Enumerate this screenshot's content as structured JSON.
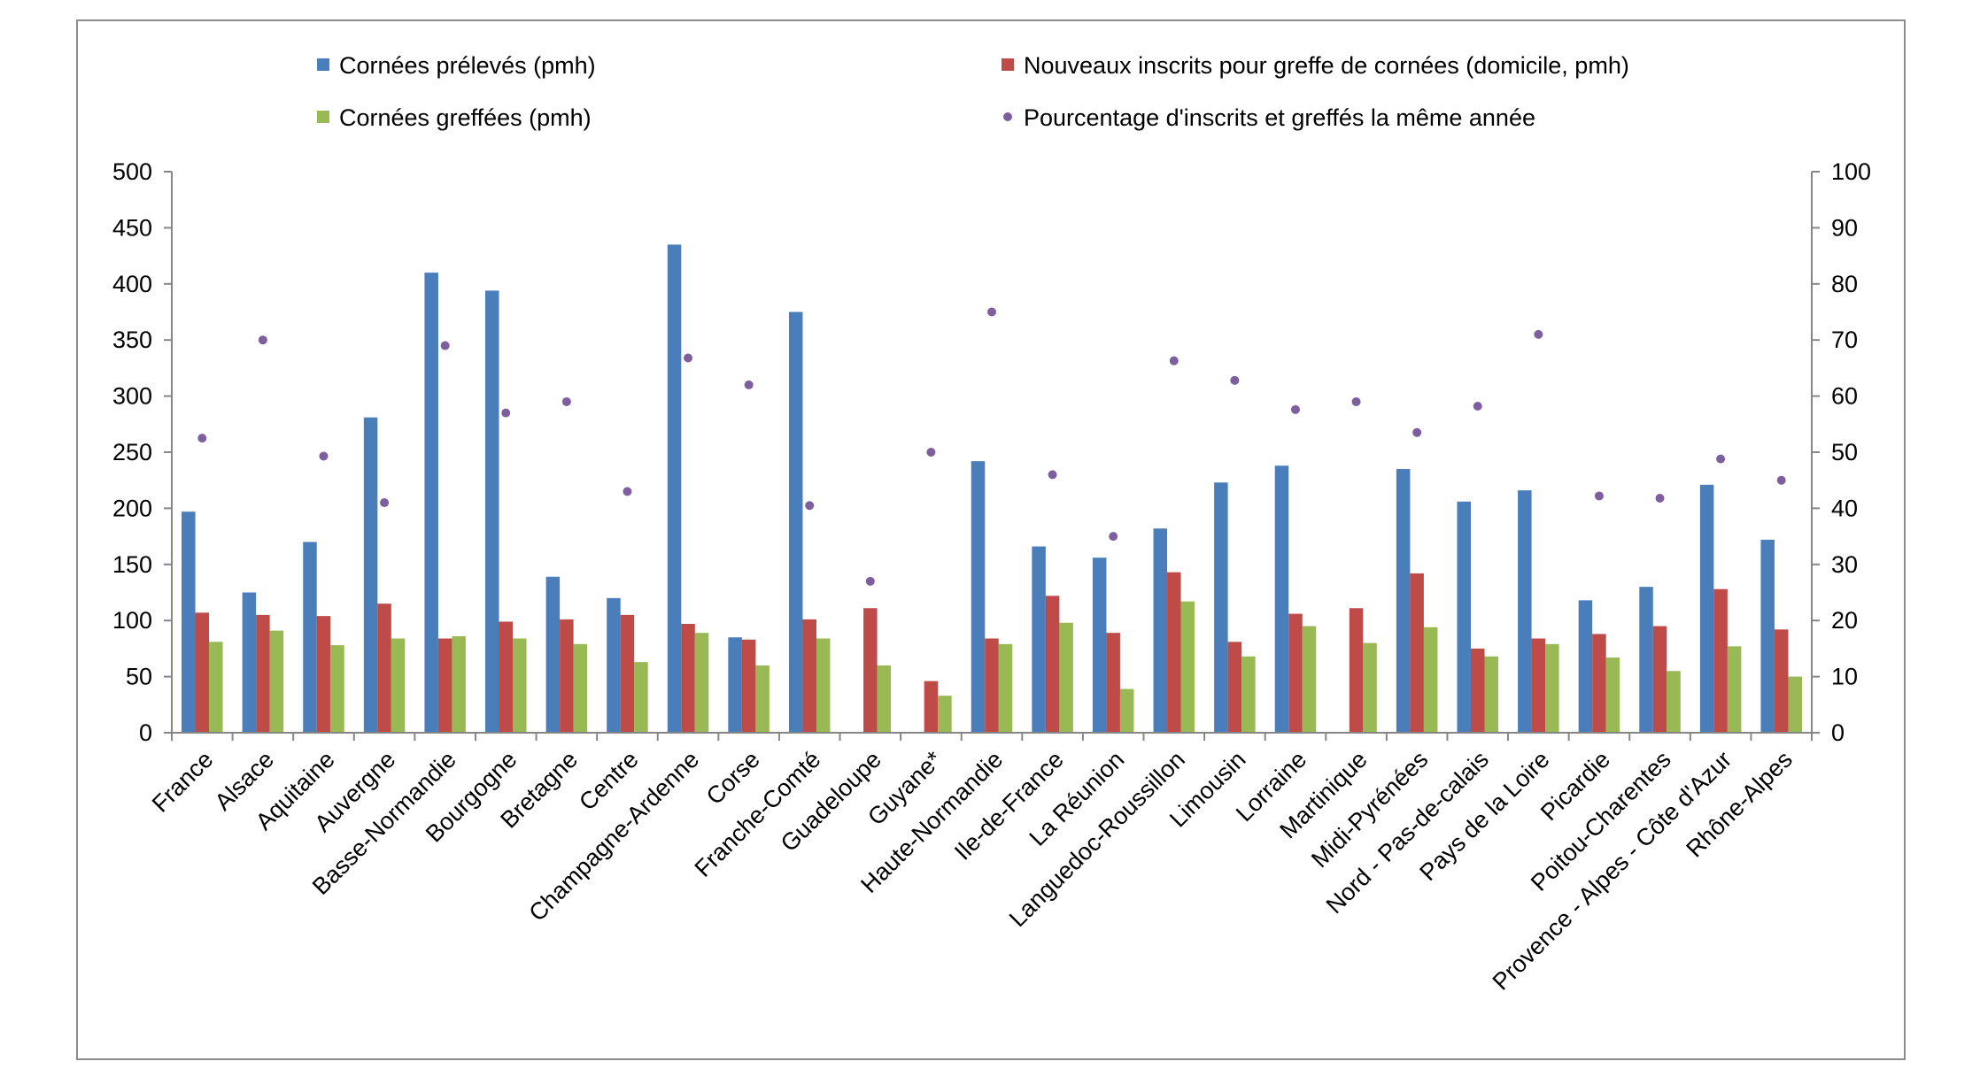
{
  "chart_data": {
    "type": "bar",
    "categories": [
      "France",
      "Alsace",
      "Aquitaine",
      "Auvergne",
      "Basse-Normandie",
      "Bourgogne",
      "Bretagne",
      "Centre",
      "Champagne-Ardenne",
      "Corse",
      "Franche-Comté",
      "Guadeloupe",
      "Guyane*",
      "Haute-Normandie",
      "Ile-de-France",
      "La Réunion",
      "Languedoc-Roussillon",
      "Limousin",
      "Lorraine",
      "Martinique",
      "Midi-Pyrénées",
      "Nord - Pas-de-calais",
      "Pays de la Loire",
      "Picardie",
      "Poitou-Charentes",
      "Provence - Alpes - Côte d'Azur",
      "Rhône-Alpes"
    ],
    "series": [
      {
        "name": "Cornées prélevés (pmh)",
        "type": "bar",
        "axis": "left",
        "color": "#4a7ebb",
        "values": [
          197,
          125,
          170,
          281,
          410,
          394,
          139,
          120,
          435,
          85,
          375,
          0,
          0,
          242,
          166,
          156,
          182,
          223,
          238,
          0,
          235,
          206,
          216,
          118,
          130,
          221,
          172
        ]
      },
      {
        "name": "Nouveaux inscrits pour greffe de cornées (domicile, pmh)",
        "type": "bar",
        "axis": "left",
        "color": "#be4b48",
        "values": [
          107,
          105,
          104,
          115,
          84,
          99,
          101,
          105,
          97,
          83,
          101,
          111,
          46,
          84,
          122,
          89,
          143,
          81,
          106,
          111,
          142,
          75,
          84,
          88,
          95,
          128,
          92
        ]
      },
      {
        "name": "Cornées greffées (pmh)",
        "type": "bar",
        "axis": "left",
        "color": "#98b954",
        "values": [
          81,
          91,
          78,
          84,
          86,
          84,
          79,
          63,
          89,
          60,
          84,
          60,
          33,
          79,
          98,
          39,
          117,
          68,
          95,
          80,
          94,
          68,
          79,
          67,
          55,
          77,
          50
        ]
      },
      {
        "name": "Pourcentage d'inscrits et greffés la même année",
        "type": "scatter",
        "axis": "right",
        "color": "#7d5fa0",
        "values": [
          52.5,
          70,
          49.3,
          41,
          69,
          57,
          59,
          43,
          66.8,
          62,
          40.5,
          27,
          50,
          75,
          46,
          35,
          66.3,
          62.8,
          57.6,
          59,
          53.5,
          58.2,
          71,
          42.2,
          41.8,
          48.8,
          45
        ]
      }
    ],
    "y_left": {
      "min": 0,
      "max": 500,
      "ticks": [
        "0",
        "50",
        "100",
        "150",
        "200",
        "250",
        "300",
        "350",
        "400",
        "450",
        "500"
      ]
    },
    "y_right": {
      "min": 0,
      "max": 100,
      "ticks": [
        "0",
        "10",
        "20",
        "30",
        "40",
        "50",
        "60",
        "70",
        "80",
        "90",
        "100"
      ]
    },
    "grid": false,
    "legend_position": "top"
  }
}
